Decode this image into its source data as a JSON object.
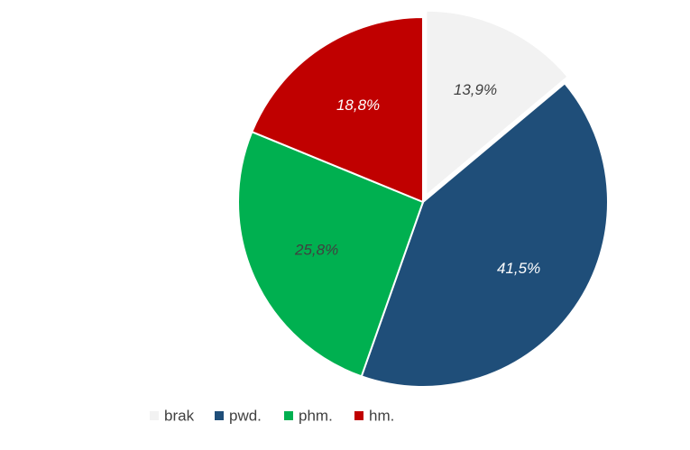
{
  "chart_data": {
    "type": "pie",
    "start_angle_deg": 0,
    "direction": "clockwise",
    "legend_position": "bottom",
    "slices": [
      {
        "name": "brak",
        "value": 13.9,
        "label": "13,9%",
        "color": "#f2f2f2",
        "label_color": "#404040",
        "exploded": true
      },
      {
        "name": "pwd.",
        "value": 41.5,
        "label": "41,5%",
        "color": "#1f4e79",
        "label_color": "#ffffff",
        "exploded": false
      },
      {
        "name": "phm.",
        "value": 25.8,
        "label": "25,8%",
        "color": "#00b050",
        "label_color": "#404040",
        "exploded": false
      },
      {
        "name": "hm.",
        "value": 18.8,
        "label": "18,8%",
        "color": "#c00000",
        "label_color": "#ffffff",
        "exploded": false
      }
    ]
  }
}
